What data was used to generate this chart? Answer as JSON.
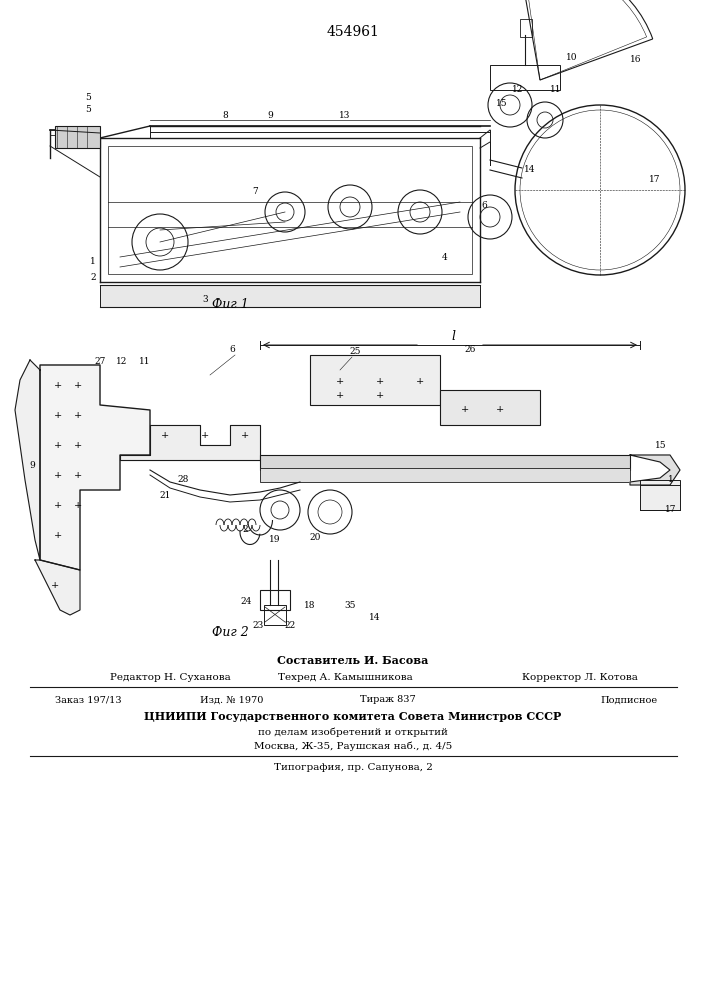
{
  "patent_number": "454961",
  "fig1_caption": "Фиг.1",
  "fig2_caption": "Фиг.2",
  "composer": "Составитель И. Басова",
  "editor": "Редактор Н. Суханова",
  "techred": "Техред А. Камышникова",
  "corrector": "Корректор Л. Котова",
  "order": "Заказ 197/13",
  "izd": "Изд. № 1970",
  "tirazh": "Тираж 837",
  "podpisnoe": "Подписное",
  "org_line1": "ЦНИИПИ Государственного комитета Совета Министров СССР",
  "org_line2": "по делам изобретений и открытий",
  "org_line3": "Москва, Ж-35, Раушская наб., д. 4/5",
  "print_line": "Типография, пр. Сапунова, 2",
  "bg_color": "#ffffff"
}
